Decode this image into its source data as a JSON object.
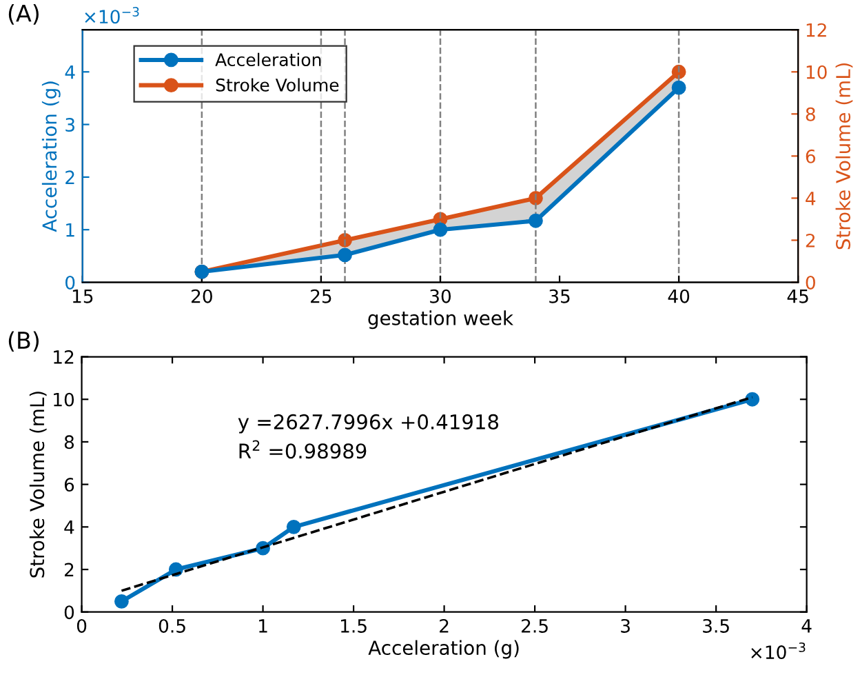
{
  "chart_data": [
    {
      "type": "line",
      "title": "(A)",
      "xlabel": "gestation week",
      "ylabel": "Acceleration (g)",
      "y2label": "Stroke Volume (mL)",
      "x": [
        20,
        26,
        30,
        34,
        40
      ],
      "series": [
        {
          "name": "Acceleration",
          "color": "#0072bd",
          "values": [
            0.2,
            0.52,
            1.0,
            1.17,
            3.7
          ]
        },
        {
          "name": "Stroke Volume",
          "color": "#d95319",
          "axis": "y2",
          "values": [
            0.5,
            2,
            3,
            4,
            10
          ],
          "lower": [
            0.5,
            1.3,
            2.5,
            2.9,
            9.25
          ],
          "upper": [
            0.5,
            2,
            3,
            4,
            10
          ]
        }
      ],
      "xlim": [
        15,
        45
      ],
      "xticks": [
        15,
        20,
        25,
        30,
        35,
        40,
        45
      ],
      "ylim": [
        0,
        4.8
      ],
      "yticks": [
        0,
        1,
        2,
        3,
        4
      ],
      "y2lim": [
        0,
        12
      ],
      "y2ticks": [
        0,
        2,
        4,
        6,
        8,
        10,
        12
      ],
      "ref_lines": [
        {
          "axis": "x",
          "value": 20,
          "color": "#808080",
          "line_style": "dashed"
        },
        {
          "axis": "x",
          "value": 25,
          "color": "#808080",
          "line_style": "dashed"
        },
        {
          "axis": "x",
          "value": 26,
          "color": "#808080",
          "line_style": "dashed"
        },
        {
          "axis": "x",
          "value": 30,
          "color": "#808080",
          "line_style": "dashed"
        },
        {
          "axis": "x",
          "value": 34,
          "color": "#808080",
          "line_style": "dashed"
        },
        {
          "axis": "x",
          "value": 40,
          "color": "#808080",
          "line_style": "dashed"
        }
      ],
      "annotations": [
        "×10$^{−3}$"
      ],
      "legend": "top left",
      "grid": false,
      "marker": "circle",
      "line_style": "solid"
    },
    {
      "type": "line",
      "title": "(B)",
      "xlabel": "Acceleration (g)",
      "ylabel": "Stroke Volume (mL)",
      "series": [
        {
          "color": "#0072bd",
          "x": [
            0.22,
            0.52,
            1.0,
            1.17,
            3.7
          ],
          "values": [
            0.5,
            2,
            3,
            4,
            10
          ],
          "marker": "circle",
          "line_style": "solid"
        },
        {
          "color": "#000000",
          "x": [
            0.22,
            3.7
          ],
          "values": [
            1.0,
            10.1
          ],
          "marker": "none",
          "line_style": "dashed"
        }
      ],
      "xlim": [
        0,
        4
      ],
      "xticks": [
        0,
        0.5,
        1,
        1.5,
        2,
        2.5,
        3,
        3.5,
        4
      ],
      "ylim": [
        0,
        12
      ],
      "yticks": [
        0,
        2,
        4,
        6,
        8,
        10,
        12
      ],
      "annotations": [
        "y =2627.7996x +0.41918",
        "R$^{2}$ =0.98989",
        "×10$^{−3}$"
      ],
      "grid": false
    }
  ]
}
